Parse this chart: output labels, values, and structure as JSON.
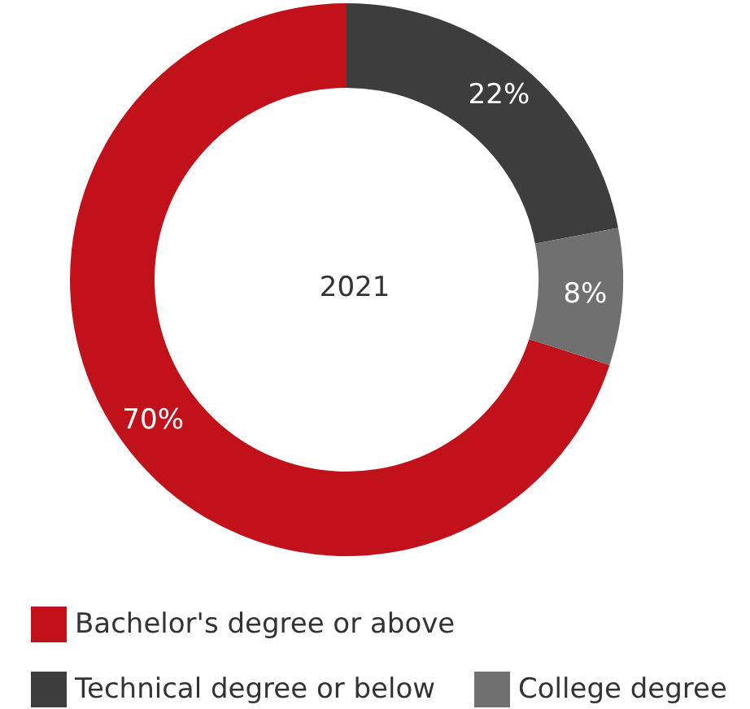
{
  "chart_data": {
    "type": "donut",
    "title": "2021",
    "categories": [
      "Bachelor's degree or above",
      "Technical degree or below",
      "College degree"
    ],
    "values": [
      70,
      22,
      8
    ],
    "colors": [
      "#c1121c",
      "#3d3d3d",
      "#707070"
    ],
    "value_labels": [
      "70%",
      "22%",
      "8%"
    ],
    "legend": "bottom"
  }
}
